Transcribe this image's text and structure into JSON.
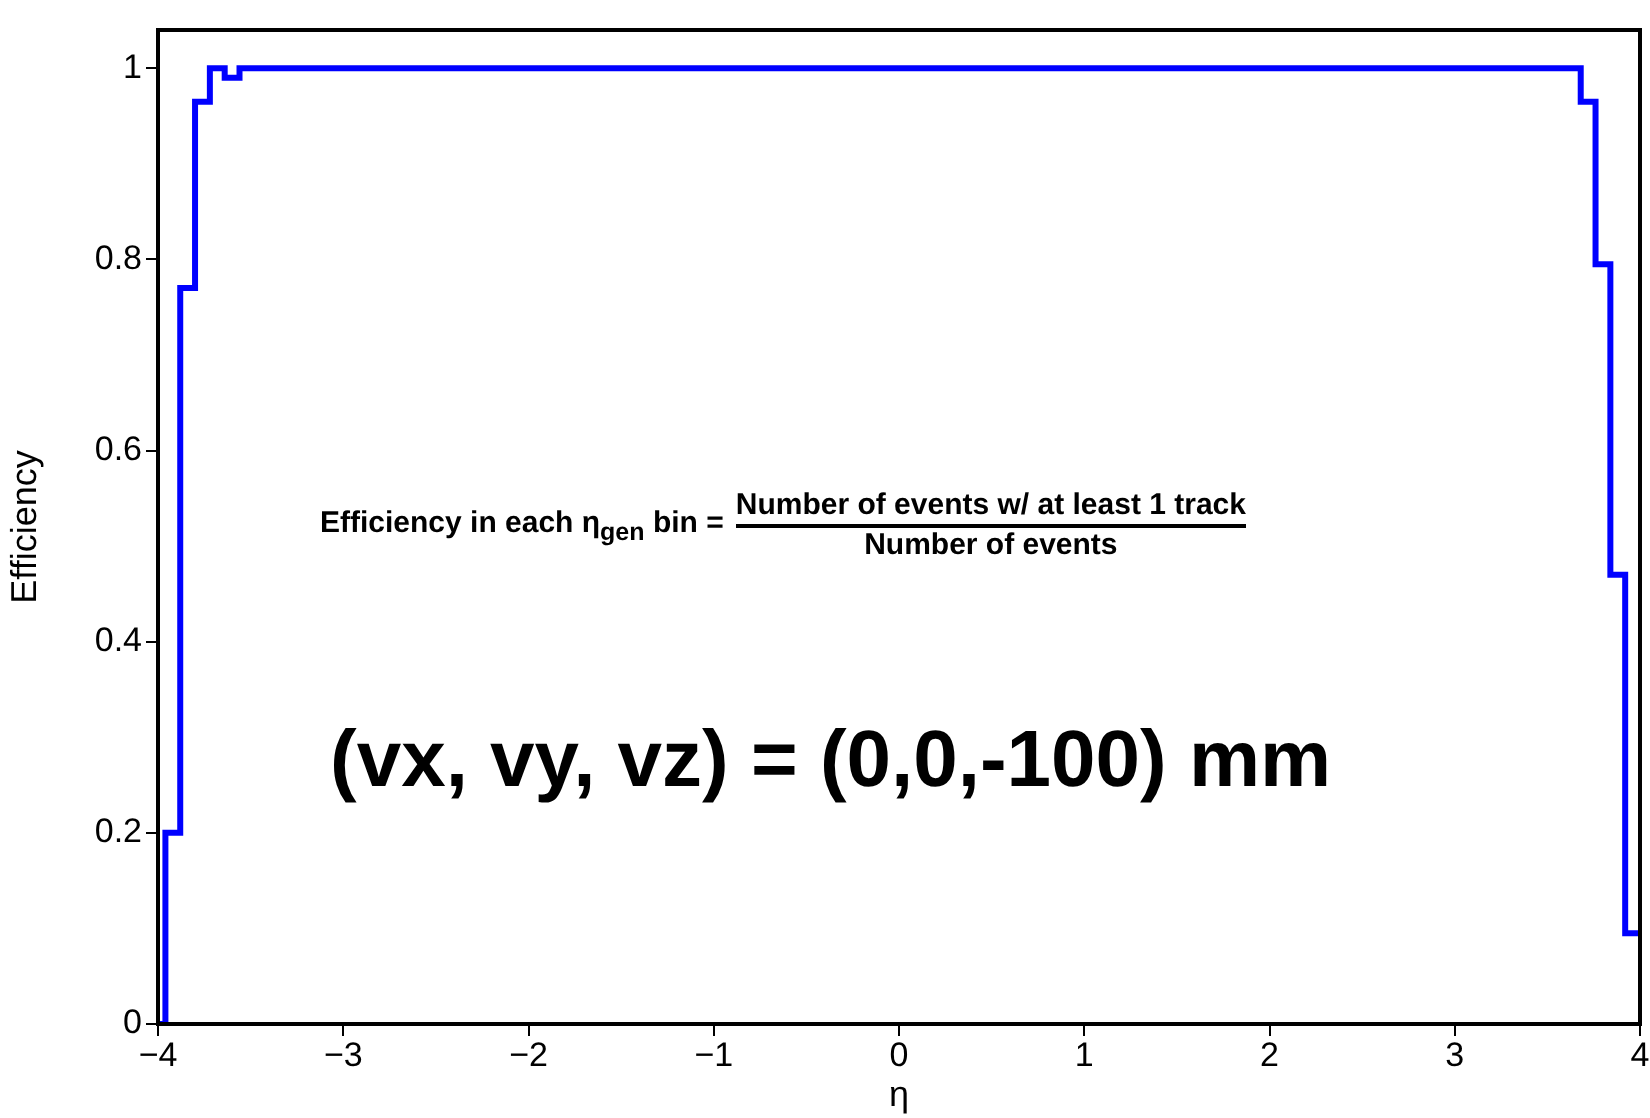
{
  "chart_data": {
    "type": "histogram",
    "xlabel": "η",
    "ylabel": "Efficiency",
    "bins": [
      -4,
      -3.96,
      -3.88,
      -3.8,
      -3.72,
      -3.64,
      -3.56,
      3.68,
      3.76,
      3.84,
      3.92,
      4
    ],
    "values": [
      0,
      0.2,
      0.77,
      0.965,
      1,
      0.99,
      1,
      0.965,
      0.795,
      0.47,
      0.095
    ],
    "color": "#0000ff",
    "xlim": [
      -4,
      4
    ],
    "xticks": [
      {
        "value": -4,
        "label": "−4"
      },
      {
        "value": -3,
        "label": "−3"
      },
      {
        "value": -2,
        "label": "−2"
      },
      {
        "value": -1,
        "label": "−1"
      },
      0,
      1,
      2,
      3,
      4
    ],
    "ylim": [
      0,
      1.04
    ],
    "yticks": [
      0,
      0.2,
      0.4,
      0.6,
      0.8,
      1
    ],
    "annotations": [
      "Efficiency in each η$_{gen}$ bin =",
      "Number of events w/ at least 1 track",
      "Number of events",
      "(vx, vy, vz) = (0,0,-100) mm"
    ]
  }
}
